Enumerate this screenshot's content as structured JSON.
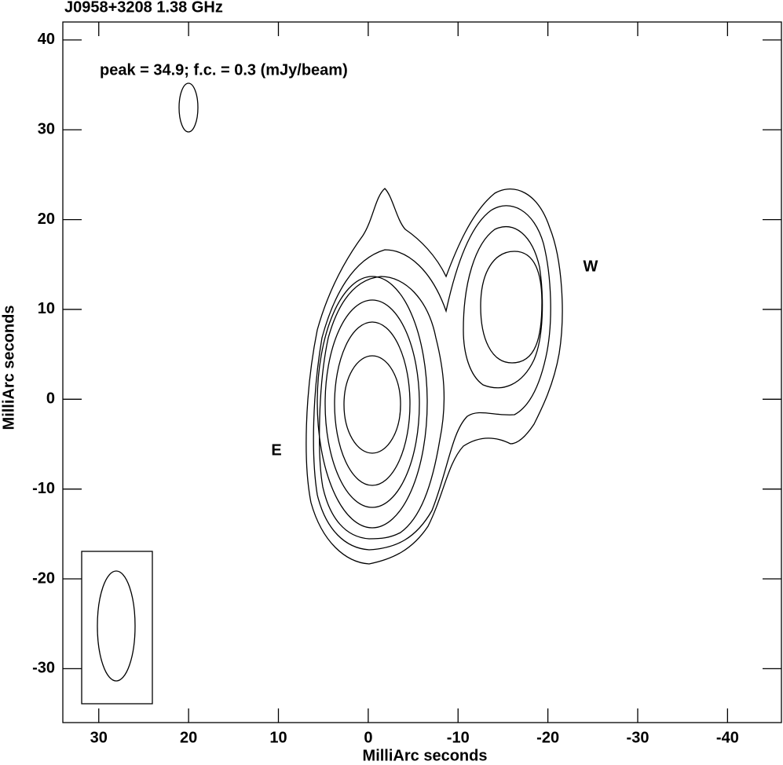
{
  "chart_data": {
    "type": "contour",
    "title": "J0958+3208  1.38 GHz",
    "annotation": "peak = 34.9;  f.c. = 0.3 (mJy/beam)",
    "labels": [
      "E",
      "W"
    ],
    "xlabel": "MilliArc seconds",
    "ylabel": "MilliArc seconds",
    "xlim": [
      34,
      -46
    ],
    "ylim": [
      -36,
      42
    ],
    "xticks": [
      30,
      20,
      10,
      0,
      -10,
      -20,
      -30,
      -40
    ],
    "yticks": [
      -30,
      -20,
      -10,
      0,
      10,
      20,
      30,
      40
    ]
  }
}
